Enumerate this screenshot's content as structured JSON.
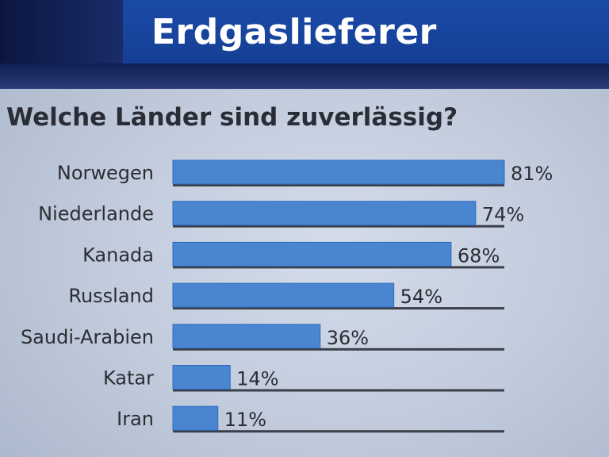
{
  "header": {
    "title": "Erdgaslieferer"
  },
  "chart_data": {
    "type": "bar",
    "orientation": "horizontal",
    "title": "Welche Länder sind zuverlässig?",
    "categories": [
      "Norwegen",
      "Niederlande",
      "Kanada",
      "Russland",
      "Saudi-Arabien",
      "Katar",
      "Iran"
    ],
    "values": [
      81,
      74,
      68,
      54,
      36,
      14,
      11
    ],
    "value_labels": [
      "81%",
      "74%",
      "68%",
      "54%",
      "36%",
      "14%",
      "11%"
    ],
    "xlim": [
      0,
      81
    ],
    "grid": false,
    "legend": "none",
    "colors": {
      "bar": "#4a86d0",
      "bar_edge": "#2f6cbf",
      "baseline": "#3b3f4a",
      "title_bg": "#1a4aa6",
      "header_bg": "#13225a"
    }
  }
}
